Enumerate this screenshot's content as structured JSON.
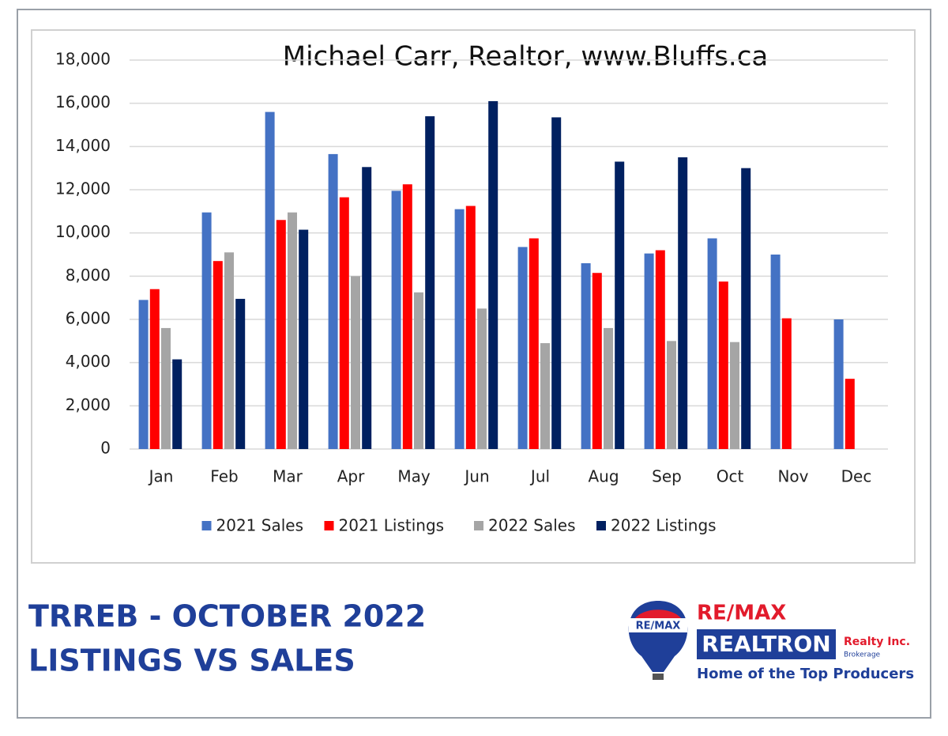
{
  "chart_data": {
    "type": "bar",
    "title": "Michael Carr, Realtor, www.Bluffs.ca",
    "categories": [
      "Jan",
      "Feb",
      "Mar",
      "Apr",
      "May",
      "Jun",
      "Jul",
      "Aug",
      "Sep",
      "Oct",
      "Nov",
      "Dec"
    ],
    "series": [
      {
        "name": "2021 Sales",
        "color": "#4472c4",
        "values": [
          6900,
          10950,
          15600,
          13650,
          11950,
          11100,
          9350,
          8600,
          9050,
          9750,
          9000,
          6000
        ]
      },
      {
        "name": "2021 Listings",
        "color": "#ff0000",
        "values": [
          7400,
          8700,
          10600,
          11650,
          12250,
          11250,
          9750,
          8150,
          9200,
          7750,
          6050,
          3250
        ]
      },
      {
        "name": "2022 Sales",
        "color": "#a5a5a5",
        "values": [
          5600,
          9100,
          10950,
          8000,
          7250,
          6500,
          4900,
          5600,
          5000,
          4950,
          null,
          null
        ]
      },
      {
        "name": "2022 Listings",
        "color": "#002060",
        "values": [
          4150,
          6950,
          10150,
          13050,
          15400,
          16100,
          15350,
          13300,
          13500,
          13000,
          null,
          null
        ]
      }
    ],
    "ylim": [
      0,
      18000
    ],
    "yticks": [
      0,
      {
        "value": 2000,
        "label": "2,000"
      },
      {
        "value": 4000,
        "label": "4,000"
      },
      {
        "value": 6000,
        "label": "6,000"
      },
      {
        "value": 8000,
        "label": "8,000"
      },
      {
        "value": 10000,
        "label": "10,000"
      },
      {
        "value": 12000,
        "label": "12,000"
      },
      {
        "value": 14000,
        "label": "14,000"
      },
      {
        "value": 16000,
        "label": "16,000"
      },
      {
        "value": 18000,
        "label": "18,000"
      }
    ],
    "grid": true,
    "legend": "bottom"
  },
  "footer": {
    "lines": [
      "TRREB - OCTOBER 2022",
      "LISTINGS VS SALES"
    ]
  },
  "logo": {
    "balloon": "RE/MAX",
    "brand": "RE/MAX",
    "name": "REALTRON",
    "suffix": "Realty Inc.",
    "sub": "Brokerage",
    "tagline": "Home of the Top Producers"
  }
}
